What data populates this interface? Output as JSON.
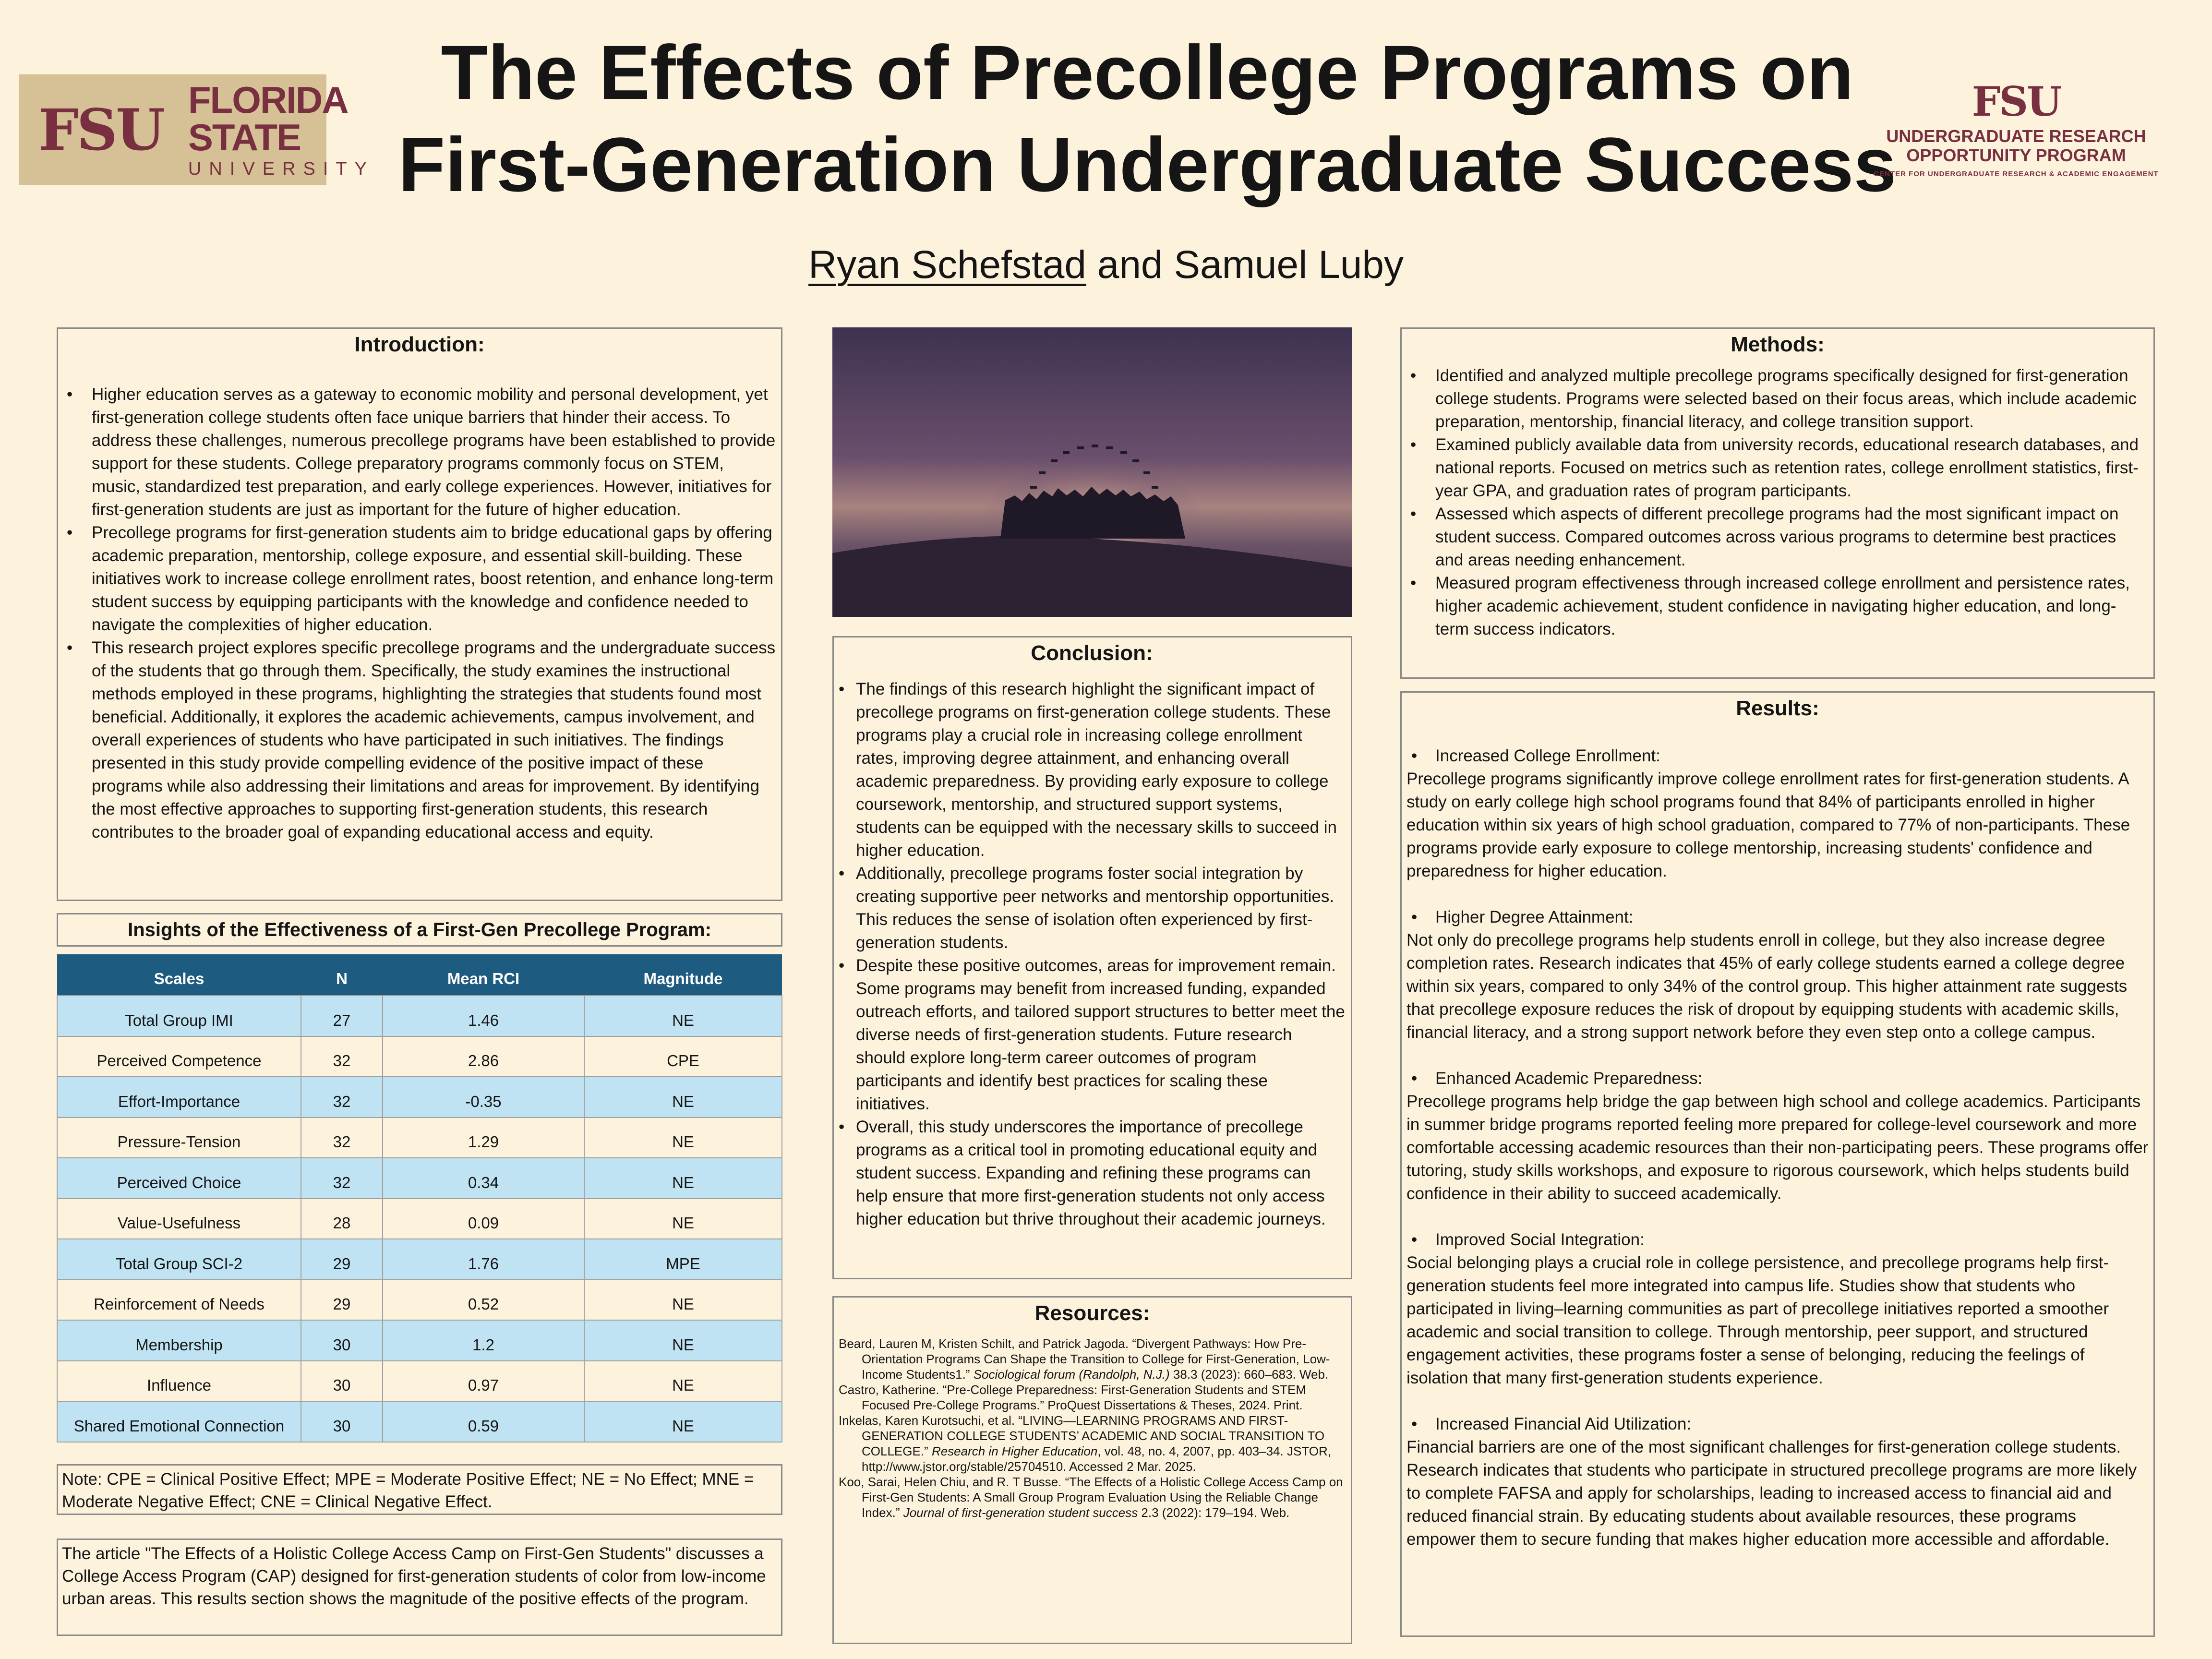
{
  "header": {
    "fsu_logo": {
      "monogram": "FSU",
      "line1": "FLORIDA STATE",
      "line2": "UNIVERSITY"
    },
    "title_line1": "The Effects of Precollege Programs on",
    "title_line2": "First-Generation Undergraduate Success",
    "author1": "Ryan Schefstad",
    "author_rest": " and Samuel Luby",
    "urop_logo": {
      "monogram": "FSU",
      "line1": "UNDERGRADUATE RESEARCH",
      "line2": "OPPORTUNITY PROGRAM",
      "line3": "CENTER FOR UNDERGRADUATE RESEARCH & ACADEMIC ENGAGEMENT"
    }
  },
  "introduction": {
    "heading": "Introduction:",
    "bullets": [
      "Higher education serves as a gateway to economic mobility and personal development, yet first-generation college students often face unique barriers that hinder their access. To address these challenges, numerous precollege programs have been established to provide support for these students. College preparatory programs commonly focus on STEM, music, standardized test preparation, and early college experiences. However, initiatives for first-generation students are just as important for the future of higher education.",
      "Precollege programs for first-generation students aim to bridge educational gaps by offering academic preparation, mentorship, college exposure, and essential skill-building. These initiatives work to increase college enrollment rates, boost retention, and enhance long-term student success by equipping participants with the knowledge and confidence needed to navigate the complexities of higher education.",
      "This research project explores specific precollege programs and the undergraduate success of the students that go through them. Specifically, the study examines the instructional methods employed in these programs, highlighting the strategies that students found most beneficial. Additionally, it explores the academic achievements, campus involvement, and overall experiences of students who have participated in such initiatives. The findings presented in this study provide compelling evidence of the positive impact of these programs while also addressing their limitations and areas for improvement. By identifying the most effective approaches to supporting first-generation students, this research contributes to the broader goal of expanding educational access and equity."
    ]
  },
  "insights": {
    "heading": "Insights of the Effectiveness of a First-Gen Precollege Program:",
    "columns": [
      "Scales",
      "N",
      "Mean RCI",
      "Magnitude"
    ],
    "rows": [
      [
        "Total Group IMI",
        "27",
        "1.46",
        "NE"
      ],
      [
        "Perceived Competence",
        "32",
        "2.86",
        "CPE"
      ],
      [
        "Effort-Importance",
        "32",
        "-0.35",
        "NE"
      ],
      [
        "Pressure-Tension",
        "32",
        "1.29",
        "NE"
      ],
      [
        "Perceived Choice",
        "32",
        "0.34",
        "NE"
      ],
      [
        "Value-Usefulness",
        "28",
        "0.09",
        "NE"
      ],
      [
        "Total Group SCI-2",
        "29",
        "1.76",
        "MPE"
      ],
      [
        "Reinforcement of Needs",
        "29",
        "0.52",
        "NE"
      ],
      [
        "Membership",
        "30",
        "1.2",
        "NE"
      ],
      [
        "Influence",
        "30",
        "0.97",
        "NE"
      ],
      [
        "Shared Emotional Connection",
        "30",
        "0.59",
        "NE"
      ]
    ],
    "note": "Note: CPE = Clinical Positive Effect; MPE = Moderate Positive Effect; NE = No Effect; MNE = Moderate Negative Effect; CNE = Clinical Negative Effect.",
    "article": "The article \"The Effects of a Holistic College Access Camp on First-Gen Students\" discusses a College Access Program (CAP) designed for first-generation students of color from low-income urban areas. This results section shows the magnitude of the positive effects of the program."
  },
  "conclusion": {
    "heading": "Conclusion:",
    "bullets": [
      "The findings of this research highlight the significant impact of precollege programs on first-generation college students. These programs play a crucial role in increasing college enrollment rates, improving degree attainment, and enhancing overall academic preparedness. By providing early exposure to college coursework, mentorship, and structured support systems, students can be equipped with the necessary skills to succeed in higher education.",
      "Additionally, precollege programs foster social integration by creating supportive peer networks and mentorship opportunities. This reduces the sense of isolation often experienced by first-generation students.",
      "Despite these positive outcomes, areas for improvement remain. Some programs may benefit from increased funding, expanded outreach efforts, and tailored support structures to better meet the diverse needs of first-generation students. Future research should explore long-term career outcomes of program participants and identify best practices for scaling these initiatives.",
      "Overall, this study underscores the importance of precollege programs as a critical tool in promoting educational equity and student success. Expanding and refining these programs can help ensure that more first-generation students not only access higher education but thrive throughout their academic journeys."
    ]
  },
  "resources": {
    "heading": "Resources:",
    "refs": [
      {
        "pre": "Beard, Lauren M, Kristen Schilt, and Patrick Jagoda. “Divergent Pathways: How Pre-Orientation Programs Can Shape the Transition to College for First-Generation, Low-Income Students1.” ",
        "ital": "Sociological forum (Randolph, N.J.)",
        "post": " 38.3 (2023): 660–683. Web."
      },
      {
        "pre": "Castro, Katherine. “Pre-College Preparedness: First-Generation Students and STEM Focused Pre-College Programs.” ProQuest Dissertations & Theses, 2024. Print.",
        "ital": "",
        "post": ""
      },
      {
        "pre": "Inkelas, Karen Kurotsuchi, et al. “LIVING—LEARNING PROGRAMS AND FIRST-GENERATION COLLEGE STUDENTS’ ACADEMIC AND SOCIAL TRANSITION TO   COLLEGE.” ",
        "ital": "Research in Higher Education",
        "post": ", vol. 48, no. 4, 2007, pp. 403–34. JSTOR, http://www.jstor.org/stable/25704510. Accessed 2 Mar. 2025."
      },
      {
        "pre": "Koo, Sarai, Helen Chiu, and R. T Busse. “The Effects of a Holistic College Access Camp on First-Gen Students: A Small Group Program Evaluation Using the Reliable Change Index.” ",
        "ital": "Journal of first-generation student success",
        "post": " 2.3 (2022): 179–194. Web."
      }
    ]
  },
  "methods": {
    "heading": "Methods:",
    "bullets": [
      "Identified and analyzed multiple precollege programs specifically designed for first-generation college students. Programs were selected based on their focus areas, which include academic preparation, mentorship, financial literacy, and college transition support.",
      "Examined publicly available data from university records, educational research databases, and national reports. Focused on metrics such as retention rates, college enrollment statistics, first-year GPA, and graduation rates of program participants.",
      "Assessed which aspects of different precollege programs had the most significant impact on student success. Compared outcomes across various programs to determine best practices and areas needing enhancement.",
      "Measured program effectiveness through increased college enrollment and persistence rates, higher academic achievement, student confidence in navigating higher education, and long-term success indicators."
    ]
  },
  "results": {
    "heading": "Results:",
    "sections": [
      {
        "head": "Increased College Enrollment:",
        "body": "Precollege programs significantly improve college enrollment rates for first-generation students. A study on early college high school programs found that 84% of participants enrolled in higher education within six years of high school graduation, compared to 77% of non-participants. These programs provide early exposure to college mentorship, increasing students' confidence and preparedness for higher education."
      },
      {
        "head": "Higher Degree Attainment:",
        "body": "Not only do precollege programs help students enroll in college, but they also increase degree completion rates. Research indicates that 45% of early college students earned a college degree within six years, compared to only 34% of the control group. This higher attainment rate suggests that precollege exposure reduces the risk of dropout by equipping students with academic skills, financial literacy, and a strong support network before they even step onto a college campus."
      },
      {
        "head": "Enhanced Academic Preparedness:",
        "body": "Precollege programs help bridge the gap between high school and college academics. Participants in summer bridge programs reported feeling more prepared for college-level coursework and more comfortable accessing academic resources than their non-participating peers. These programs offer tutoring, study skills workshops, and exposure to rigorous coursework, which helps students build confidence in their ability to succeed academically."
      },
      {
        "head": "Improved Social Integration:",
        "body": "Social belonging plays a crucial role in college persistence, and precollege programs help first-generation students feel more integrated into campus life. Studies show that students who participated in living–learning communities as part of precollege initiatives reported a smoother academic and social transition to college. Through mentorship, peer support, and structured engagement activities, these programs foster a sense of belonging, reducing the feelings of isolation that many first-generation students experience."
      },
      {
        "head": "Increased Financial Aid Utilization:",
        "body": "Financial barriers are one of the most significant challenges for first-generation college students. Research indicates that students who participate in structured precollege programs are more likely to complete FAFSA and apply for scholarships, leading to increased access to financial aid and reduced financial strain. By educating students about available resources, these programs empower them to secure funding that makes higher education more accessible and affordable."
      }
    ]
  }
}
